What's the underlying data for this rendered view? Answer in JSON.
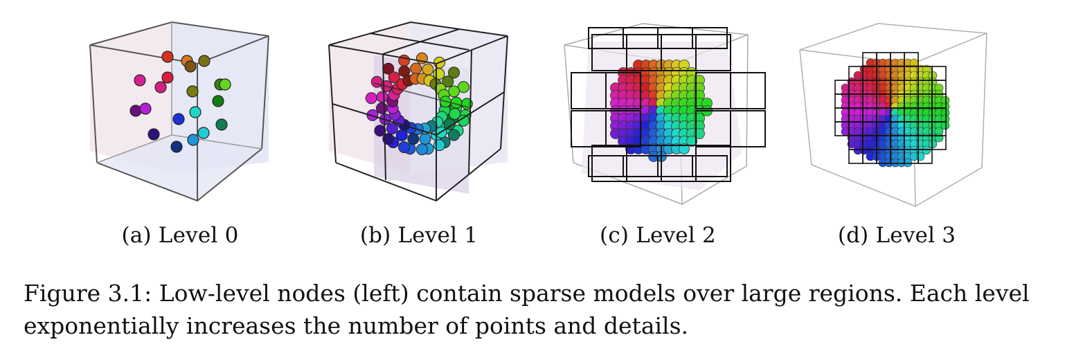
{
  "figure": {
    "panels": [
      {
        "label": "(a) Level 0",
        "level": 0
      },
      {
        "label": "(b) Level 1",
        "level": 1
      },
      {
        "label": "(c) Level 2",
        "level": 2
      },
      {
        "label": "(d) Level 3",
        "level": 3
      }
    ],
    "caption_lines": [
      "Figure 3.1: Low-level nodes (left) contain sparse models over large regions.  Each level",
      "exponentially increases the number of points and details."
    ]
  }
}
